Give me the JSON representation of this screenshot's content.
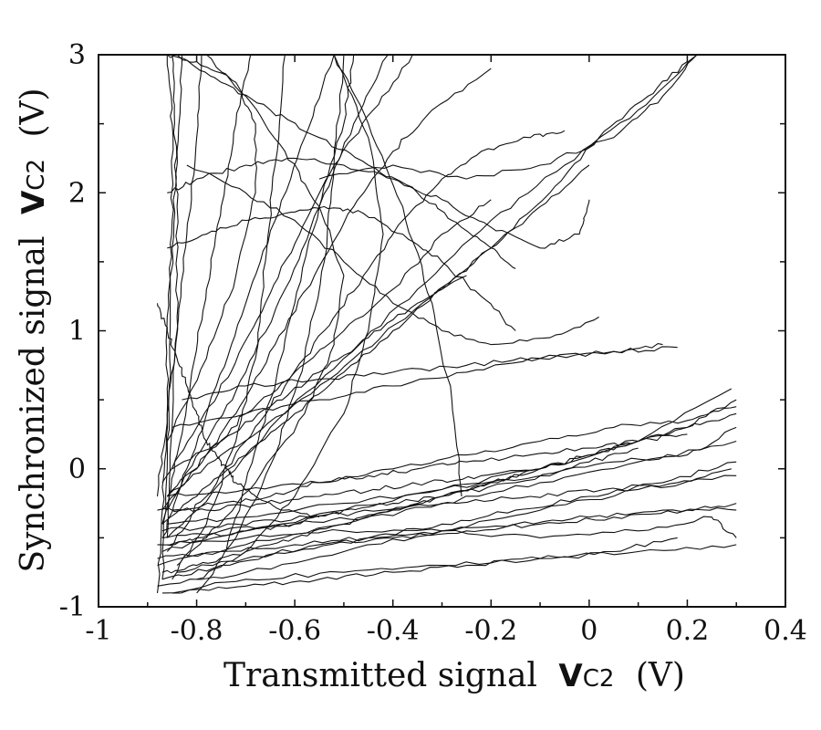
{
  "chart_data": {
    "type": "line",
    "title": "",
    "xlabel": {
      "text": "Transmitted signal",
      "symbol": "V",
      "subscript": "C2",
      "unit": "(V)"
    },
    "ylabel": {
      "text": "Synchronized signal",
      "symbol": "V",
      "subscript": "C2",
      "unit": "(V)"
    },
    "xlim": [
      -1,
      0.4
    ],
    "ylim": [
      -1,
      3
    ],
    "xticks": [
      -1,
      -0.8,
      -0.6,
      -0.4,
      -0.2,
      0,
      0.2,
      0.4
    ],
    "xtick_labels": [
      "-1",
      "-0.8",
      "-0.6",
      "-0.4",
      "-0.2",
      "0",
      "0.2",
      "0.4"
    ],
    "yticks": [
      -1,
      0,
      1,
      2,
      3
    ],
    "ytick_labels": [
      "-1",
      "0",
      "1",
      "2",
      "3"
    ],
    "grid": false,
    "legend": false,
    "series": [
      {
        "x": [
          -0.87,
          -0.8,
          -0.7,
          -0.6,
          -0.5,
          -0.4,
          -0.3,
          -0.2,
          -0.1,
          0.0,
          0.1,
          0.2,
          0.3
        ],
        "y": [
          -0.75,
          -0.7,
          -0.6,
          -0.5,
          -0.4,
          -0.3,
          -0.2,
          -0.1,
          0.0,
          0.1,
          0.2,
          0.3,
          0.5
        ]
      },
      {
        "x": [
          -0.87,
          -0.75,
          -0.6,
          -0.45,
          -0.3,
          -0.15,
          0.0,
          0.15,
          0.3
        ],
        "y": [
          -0.8,
          -0.7,
          -0.6,
          -0.5,
          -0.4,
          -0.3,
          -0.2,
          -0.1,
          0.05
        ]
      },
      {
        "x": [
          -0.88,
          -0.7,
          -0.5,
          -0.3,
          -0.1,
          0.1,
          0.3
        ],
        "y": [
          -0.85,
          -0.75,
          -0.6,
          -0.45,
          -0.3,
          -0.15,
          -0.05
        ]
      },
      {
        "x": [
          -0.88,
          -0.7,
          -0.5,
          -0.3,
          -0.1,
          0.1,
          0.3
        ],
        "y": [
          -0.7,
          -0.55,
          -0.4,
          -0.25,
          -0.1,
          0.05,
          0.2
        ]
      },
      {
        "x": [
          -0.87,
          -0.7,
          -0.5,
          -0.3,
          -0.1,
          0.1,
          0.29
        ],
        "y": [
          -0.6,
          -0.45,
          -0.3,
          -0.15,
          0.0,
          0.2,
          0.58
        ]
      },
      {
        "x": [
          -0.87,
          -0.7,
          -0.5,
          -0.3,
          -0.1,
          0.1,
          0.3
        ],
        "y": [
          -0.9,
          -0.8,
          -0.75,
          -0.7,
          -0.65,
          -0.6,
          -0.55
        ]
      },
      {
        "x": [
          -0.88,
          -0.7,
          -0.5,
          -0.3,
          -0.1,
          0.1,
          0.25,
          0.3
        ],
        "y": [
          -0.55,
          -0.5,
          -0.45,
          -0.45,
          -0.5,
          -0.45,
          -0.35,
          -0.5
        ]
      },
      {
        "x": [
          -0.85,
          -0.7,
          -0.55,
          -0.4,
          -0.25,
          -0.1,
          0.05,
          0.18
        ],
        "y": [
          -0.9,
          -0.85,
          -0.8,
          -0.75,
          -0.7,
          -0.65,
          -0.6,
          -0.5
        ]
      },
      {
        "x": [
          -0.86,
          -0.7,
          -0.5,
          -0.3,
          -0.1,
          0.05,
          0.2,
          0.3
        ],
        "y": [
          -0.4,
          -0.35,
          -0.25,
          -0.15,
          -0.05,
          0.05,
          0.1,
          0.3
        ]
      },
      {
        "x": [
          -0.88,
          -0.75,
          -0.6,
          -0.45,
          -0.3,
          -0.15,
          0.0,
          0.15,
          0.3
        ],
        "y": [
          -0.65,
          -0.6,
          -0.55,
          -0.5,
          -0.45,
          -0.4,
          -0.35,
          -0.3,
          -0.3
        ]
      },
      {
        "x": [
          -0.86,
          -0.8,
          -0.7,
          -0.6,
          -0.5,
          -0.4,
          -0.3,
          -0.2,
          -0.1
        ],
        "y": [
          -0.55,
          -0.5,
          -0.45,
          -0.4,
          -0.3,
          -0.25,
          -0.2,
          -0.1,
          0.0
        ]
      },
      {
        "x": [
          -0.87,
          -0.75,
          -0.6,
          -0.45,
          -0.3,
          -0.15,
          0.0,
          0.1
        ],
        "y": [
          -0.5,
          -0.45,
          -0.4,
          -0.35,
          -0.2,
          -0.1,
          0.05,
          0.15
        ]
      },
      {
        "x": [
          -0.88,
          -0.78,
          -0.66,
          -0.55,
          -0.44,
          -0.33,
          -0.22,
          -0.1,
          0.0,
          0.1,
          0.2,
          0.3
        ],
        "y": [
          -0.3,
          -0.3,
          -0.25,
          -0.2,
          -0.15,
          -0.1,
          -0.05,
          0.0,
          0.1,
          0.2,
          0.3,
          0.4
        ]
      },
      {
        "x": [
          -0.86,
          -0.7,
          -0.55,
          -0.4,
          -0.25,
          -0.1,
          0.05,
          0.2,
          0.3
        ],
        "y": [
          -0.2,
          -0.15,
          -0.1,
          0.0,
          0.1,
          0.2,
          0.3,
          0.35,
          0.45
        ]
      },
      {
        "x": [
          -0.85,
          -0.7,
          -0.55,
          -0.4,
          -0.25,
          -0.1,
          0.05,
          0.18
        ],
        "y": [
          0.3,
          0.4,
          0.5,
          0.6,
          0.7,
          0.8,
          0.85,
          0.88
        ]
      },
      {
        "x": [
          -0.83,
          -0.7,
          -0.55,
          -0.4,
          -0.25,
          -0.1,
          0.05,
          0.15
        ],
        "y": [
          0.5,
          0.6,
          0.65,
          0.7,
          0.75,
          0.8,
          0.85,
          0.9
        ]
      },
      {
        "x": [
          -0.85,
          -0.75,
          -0.65,
          -0.55,
          -0.45,
          -0.35,
          -0.25
        ],
        "y": [
          0.0,
          0.2,
          0.45,
          0.7,
          0.95,
          1.2,
          1.4
        ]
      },
      {
        "x": [
          -0.86,
          -0.78,
          -0.7,
          -0.6,
          -0.5,
          -0.4,
          -0.3,
          -0.2
        ],
        "y": [
          -0.2,
          0.1,
          0.4,
          0.7,
          1.0,
          1.3,
          1.7,
          1.95
        ]
      },
      {
        "x": [
          -0.87,
          -0.8,
          -0.72,
          -0.64,
          -0.56,
          -0.48,
          -0.4,
          -0.32,
          -0.2
        ],
        "y": [
          -0.3,
          0.0,
          0.4,
          0.9,
          1.4,
          1.9,
          2.3,
          2.6,
          2.9
        ]
      },
      {
        "x": [
          -0.87,
          -0.8,
          -0.7,
          -0.6,
          -0.5,
          -0.4,
          -0.3,
          -0.2,
          -0.1,
          0.0
        ],
        "y": [
          -0.4,
          -0.2,
          0.1,
          0.4,
          0.7,
          1.0,
          1.3,
          1.6,
          1.9,
          2.2
        ]
      },
      {
        "x": [
          -0.86,
          -0.78,
          -0.7,
          -0.62,
          -0.54,
          -0.46,
          -0.38,
          -0.3,
          -0.22,
          -0.12,
          -0.05
        ],
        "y": [
          -0.5,
          -0.2,
          0.2,
          0.6,
          1.0,
          1.4,
          1.8,
          2.1,
          2.3,
          2.4,
          2.45
        ]
      },
      {
        "x": [
          -0.86,
          -0.78,
          -0.7,
          -0.62,
          -0.55,
          -0.48,
          -0.41
        ],
        "y": [
          -0.3,
          0.2,
          0.7,
          1.3,
          1.9,
          2.5,
          3.0
        ]
      },
      {
        "x": [
          -0.87,
          -0.82,
          -0.76,
          -0.7,
          -0.64,
          -0.58,
          -0.52
        ],
        "y": [
          -0.5,
          0.0,
          0.6,
          1.2,
          1.8,
          2.4,
          3.0
        ]
      },
      {
        "x": [
          -0.87,
          -0.84,
          -0.81,
          -0.78,
          -0.75,
          -0.72,
          -0.69
        ],
        "y": [
          -0.4,
          0.1,
          0.7,
          1.3,
          1.9,
          2.5,
          3.0
        ]
      },
      {
        "x": [
          -0.88,
          -0.87,
          -0.86,
          -0.86,
          -0.85,
          -0.85,
          -0.86
        ],
        "y": [
          -0.9,
          -0.3,
          0.4,
          1.1,
          1.8,
          2.5,
          3.0
        ]
      },
      {
        "x": [
          -0.87,
          -0.86,
          -0.855,
          -0.85,
          -0.84,
          -0.83
        ],
        "y": [
          -0.8,
          0.0,
          0.8,
          1.6,
          2.3,
          3.0
        ]
      },
      {
        "x": [
          -0.86,
          -0.85,
          -0.84,
          -0.84,
          -0.845,
          -0.85
        ],
        "y": [
          -0.5,
          0.3,
          1.1,
          1.9,
          2.5,
          3.0
        ]
      },
      {
        "x": [
          -0.88,
          -0.86,
          -0.84,
          -0.82,
          -0.8,
          -0.79
        ],
        "y": [
          -0.2,
          0.4,
          1.0,
          1.7,
          2.4,
          3.0
        ]
      },
      {
        "x": [
          -0.87,
          -0.8,
          -0.73,
          -0.66,
          -0.59,
          -0.52,
          -0.44,
          -0.36
        ],
        "y": [
          -0.1,
          0.3,
          0.7,
          1.2,
          1.7,
          2.2,
          2.6,
          3.0
        ]
      },
      {
        "x": [
          -0.8,
          -0.7,
          -0.6,
          -0.5,
          -0.45,
          -0.42,
          -0.45,
          -0.52
        ],
        "y": [
          -0.8,
          -0.6,
          -0.2,
          0.4,
          1.0,
          1.7,
          2.4,
          3.0
        ]
      },
      {
        "x": [
          -0.74,
          -0.7,
          -0.65,
          -0.6,
          -0.55,
          -0.5,
          -0.48
        ],
        "y": [
          -0.6,
          -0.1,
          0.5,
          1.2,
          1.9,
          2.5,
          3.0
        ]
      },
      {
        "x": [
          -0.86,
          -0.75,
          -0.62,
          -0.48,
          -0.34,
          -0.2,
          -0.08,
          0.02,
          0.12,
          0.2
        ],
        "y": [
          -0.2,
          0.1,
          0.4,
          0.8,
          1.2,
          1.6,
          2.0,
          2.4,
          2.7,
          2.95
        ]
      },
      {
        "x": [
          0.22,
          0.1,
          -0.05,
          -0.2,
          -0.35,
          -0.5,
          -0.65,
          -0.8,
          -0.86
        ],
        "y": [
          3.0,
          2.6,
          2.2,
          1.8,
          1.3,
          0.8,
          0.3,
          -0.3,
          -0.6
        ]
      },
      {
        "x": [
          0.22,
          0.15,
          0.05,
          -0.1,
          -0.25,
          -0.4,
          -0.55
        ],
        "y": [
          3.0,
          2.7,
          2.4,
          2.2,
          2.1,
          2.2,
          2.1
        ]
      },
      {
        "x": [
          -0.86,
          -0.8,
          -0.7,
          -0.6,
          -0.5,
          -0.4,
          -0.3,
          -0.2,
          -0.1,
          -0.02,
          0.0
        ],
        "y": [
          2.0,
          2.1,
          2.2,
          2.25,
          2.2,
          2.1,
          1.95,
          1.75,
          1.6,
          1.7,
          1.95
        ]
      },
      {
        "x": [
          -0.82,
          -0.7,
          -0.6,
          -0.5,
          -0.4,
          -0.3,
          -0.2,
          -0.08,
          0.02
        ],
        "y": [
          2.2,
          2.0,
          1.8,
          1.5,
          1.2,
          1.0,
          0.9,
          0.95,
          1.1
        ]
      },
      {
        "x": [
          -0.78,
          -0.7,
          -0.62,
          -0.55,
          -0.5,
          -0.52,
          -0.58,
          -0.68,
          -0.78,
          -0.84
        ],
        "y": [
          3.0,
          2.7,
          2.3,
          1.9,
          1.4,
          0.9,
          0.4,
          -0.1,
          -0.5,
          -0.7
        ]
      },
      {
        "x": [
          -0.52,
          -0.45,
          -0.38,
          -0.32,
          -0.28,
          -0.26
        ],
        "y": [
          3.0,
          2.5,
          1.9,
          1.2,
          0.5,
          -0.2
        ]
      },
      {
        "x": [
          -0.84,
          -0.75,
          -0.65,
          -0.55,
          -0.45,
          -0.35,
          -0.28,
          -0.2,
          -0.15
        ],
        "y": [
          3.0,
          2.8,
          2.6,
          2.4,
          2.2,
          2.0,
          1.8,
          1.6,
          1.45
        ]
      },
      {
        "x": [
          -0.86,
          -0.78,
          -0.7,
          -0.62,
          -0.54,
          -0.46,
          -0.38,
          -0.3,
          -0.22,
          -0.15
        ],
        "y": [
          1.6,
          1.7,
          1.8,
          1.85,
          1.9,
          1.85,
          1.7,
          1.5,
          1.25,
          1.0
        ]
      },
      {
        "x": [
          -0.85,
          -0.78,
          -0.72,
          -0.68,
          -0.66,
          -0.64,
          -0.62
        ],
        "y": [
          -0.8,
          -0.4,
          0.2,
          0.8,
          1.5,
          2.2,
          3.0
        ]
      },
      {
        "x": [
          -0.8,
          -0.72,
          -0.64,
          -0.58,
          -0.54,
          -0.52,
          -0.5
        ],
        "y": [
          -0.9,
          -0.5,
          0.1,
          0.8,
          1.5,
          2.2,
          3.0
        ]
      },
      {
        "x": [
          -0.88,
          -0.86,
          -0.84,
          -0.82,
          -0.8,
          -0.78,
          -0.76,
          -0.74,
          -0.72,
          -0.68,
          -0.62,
          -0.55
        ],
        "y": [
          1.2,
          1.0,
          0.8,
          0.6,
          0.4,
          0.2,
          0.1,
          0.0,
          -0.1,
          -0.2,
          -0.3,
          -0.35
        ]
      },
      {
        "x": [
          -0.86,
          -0.78,
          -0.72,
          -0.68,
          -0.68,
          -0.72,
          -0.8,
          -0.86
        ],
        "y": [
          0.2,
          0.8,
          1.4,
          2.0,
          2.5,
          2.8,
          2.95,
          3.0
        ]
      },
      {
        "x": [
          -0.85,
          -0.75,
          -0.65,
          -0.55,
          -0.45,
          -0.35,
          -0.25,
          -0.12,
          0.0,
          0.1,
          0.2
        ],
        "y": [
          -0.3,
          -0.25,
          -0.2,
          -0.1,
          -0.05,
          0.0,
          0.05,
          0.1,
          0.15,
          0.2,
          0.25
        ]
      },
      {
        "x": [
          -0.84,
          -0.7,
          -0.55,
          -0.4,
          -0.25,
          -0.1,
          0.05,
          0.2,
          0.3
        ],
        "y": [
          -0.75,
          -0.65,
          -0.55,
          -0.5,
          -0.45,
          -0.4,
          -0.35,
          -0.3,
          -0.25
        ]
      },
      {
        "x": [
          -0.87,
          -0.72,
          -0.57,
          -0.42,
          -0.27,
          -0.12,
          0.03,
          0.18,
          0.29
        ],
        "y": [
          -0.45,
          -0.4,
          -0.35,
          -0.3,
          -0.25,
          -0.2,
          -0.15,
          -0.1,
          0.0
        ]
      }
    ]
  }
}
